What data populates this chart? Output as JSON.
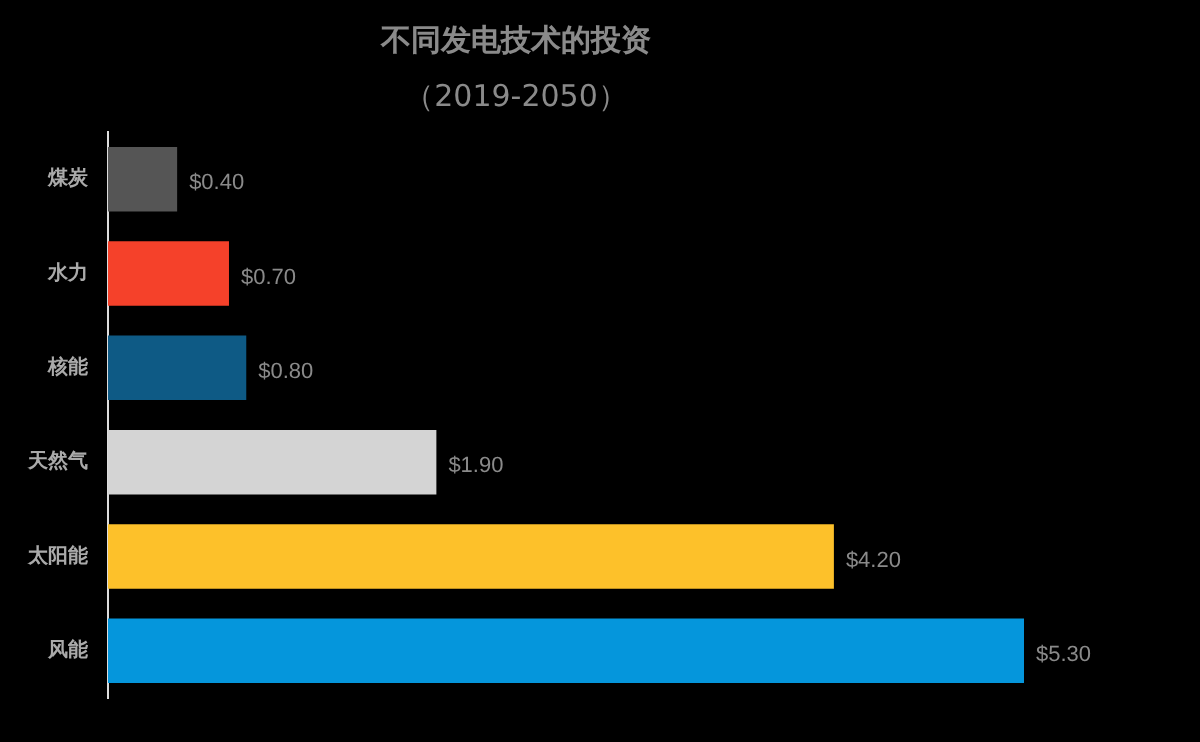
{
  "chart_data": {
    "type": "bar",
    "orientation": "horizontal",
    "title": "不同发电技术的投资",
    "subtitle": "（2019-2050）",
    "categories": [
      "煤炭",
      "水力",
      "核能",
      "天然气",
      "太阳能",
      "风能"
    ],
    "values": [
      0.4,
      0.7,
      0.8,
      1.9,
      4.2,
      5.3
    ],
    "colors": [
      "#555555",
      "#f5412a",
      "#0e5a85",
      "#d4d4d4",
      "#fdc12a",
      "#0596dc"
    ],
    "value_labels": [
      "$0.40",
      "$0.70",
      "$0.80",
      "$1.90",
      "$4.20",
      "$5.30"
    ],
    "legend": false
  }
}
